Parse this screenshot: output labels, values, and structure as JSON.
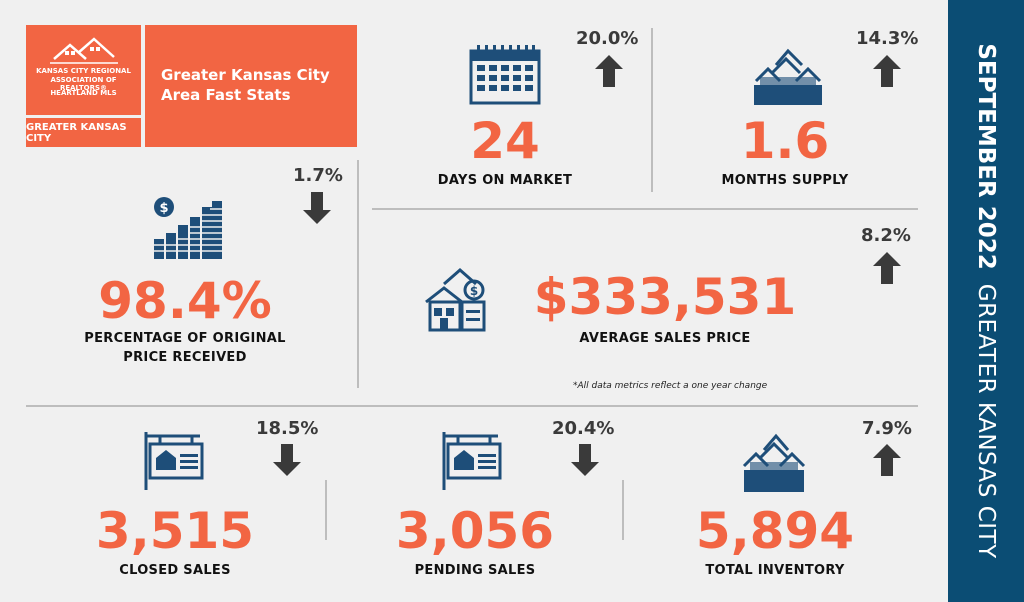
{
  "logo": {
    "org_line1": "KANSAS CITY REGIONAL",
    "org_line2": "ASSOCIATION OF REALTORS®",
    "mls": "HEARTLAND MLS",
    "region": "GREATER KANSAS CITY"
  },
  "header": {
    "title": "Greater Kansas City Area Fast Stats"
  },
  "sidebar": {
    "month": "SEPTEMBER 2022",
    "region": "GREATER KANSAS CITY"
  },
  "stats": {
    "days_on_market": {
      "value": "24",
      "label": "DAYS ON MARKET",
      "change": "20.0%",
      "direction": "up",
      "icon": "calendar-icon"
    },
    "months_supply": {
      "value": "1.6",
      "label": "MONTHS SUPPLY",
      "change": "14.3%",
      "direction": "up",
      "icon": "houses-icon"
    },
    "pct_original": {
      "value": "98.4%",
      "label_line1": "PERCENTAGE OF ORIGINAL",
      "label_line2": "PRICE RECEIVED",
      "change": "1.7%",
      "direction": "down",
      "icon": "coins-icon"
    },
    "avg_price": {
      "value": "$333,531",
      "label": "AVERAGE SALES PRICE",
      "change": "8.2%",
      "direction": "up",
      "icon": "house-money-icon"
    },
    "closed_sales": {
      "value": "3,515",
      "label": "CLOSED SALES",
      "change": "18.5%",
      "direction": "down",
      "icon": "sale-sign-icon"
    },
    "pending_sales": {
      "value": "3,056",
      "label": "PENDING SALES",
      "change": "20.4%",
      "direction": "down",
      "icon": "sale-sign-icon"
    },
    "total_inventory": {
      "value": "5,894",
      "label": "TOTAL INVENTORY",
      "change": "7.9%",
      "direction": "up",
      "icon": "houses-icon"
    }
  },
  "note": "*All data metrics reflect a one year change",
  "colors": {
    "accent": "#f26543",
    "navy": "#0b4d74",
    "arrow": "#3a3a3a",
    "icon": "#1e4e79"
  }
}
